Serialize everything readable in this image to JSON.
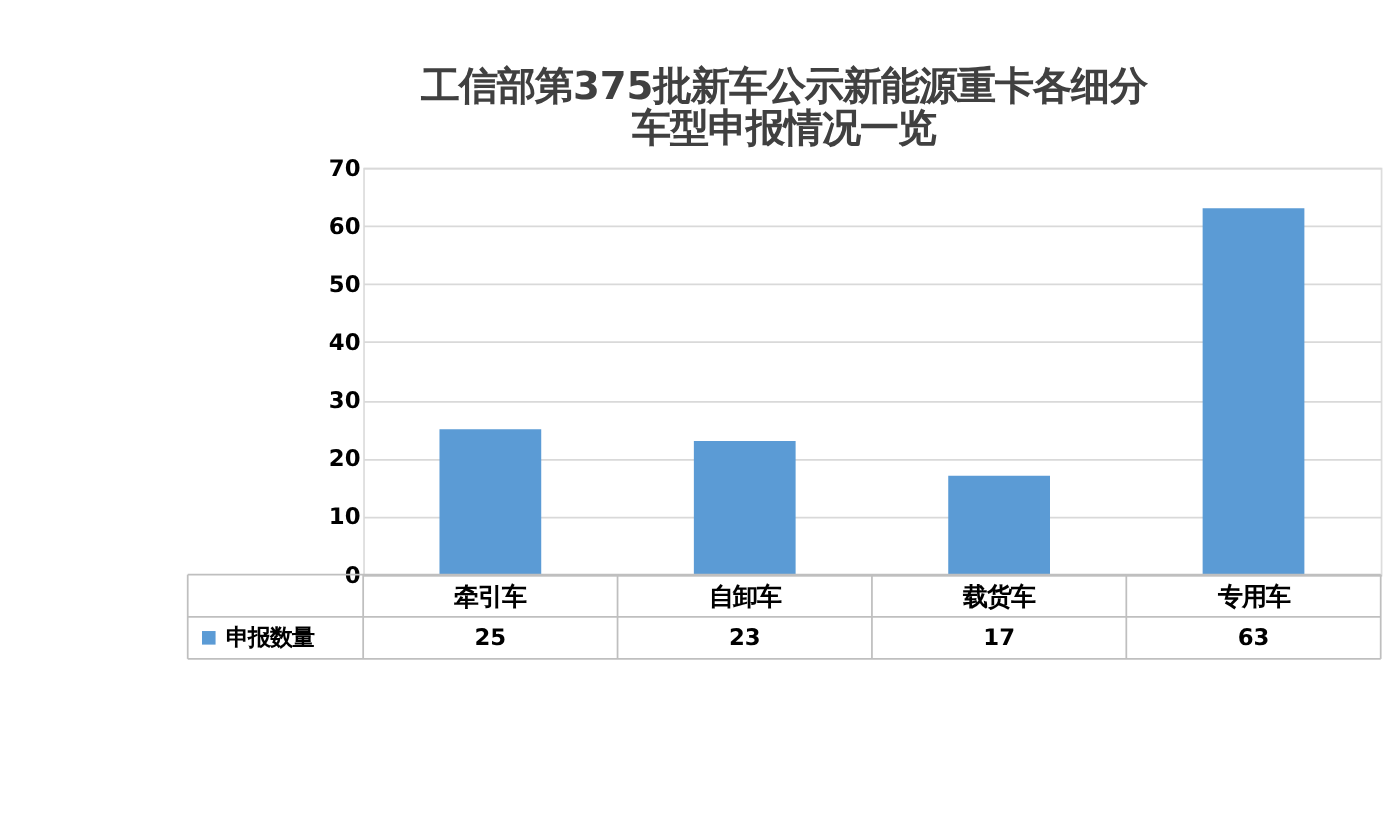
{
  "chart_data": {
    "type": "bar",
    "title": "工信部第375批新车公示新能源重卡各细分车型申报情况一览",
    "categories": [
      "牵引车",
      "自卸车",
      "载货车",
      "专用车"
    ],
    "series": [
      {
        "name": "申报数量",
        "color": "#5b9bd5",
        "values": [
          25,
          23,
          17,
          63
        ]
      }
    ],
    "ylim": [
      0,
      70
    ],
    "yticks": [
      0,
      10,
      20,
      30,
      40,
      50,
      60,
      70
    ],
    "grid": "y",
    "data_labels": true,
    "legend": "bottom"
  }
}
